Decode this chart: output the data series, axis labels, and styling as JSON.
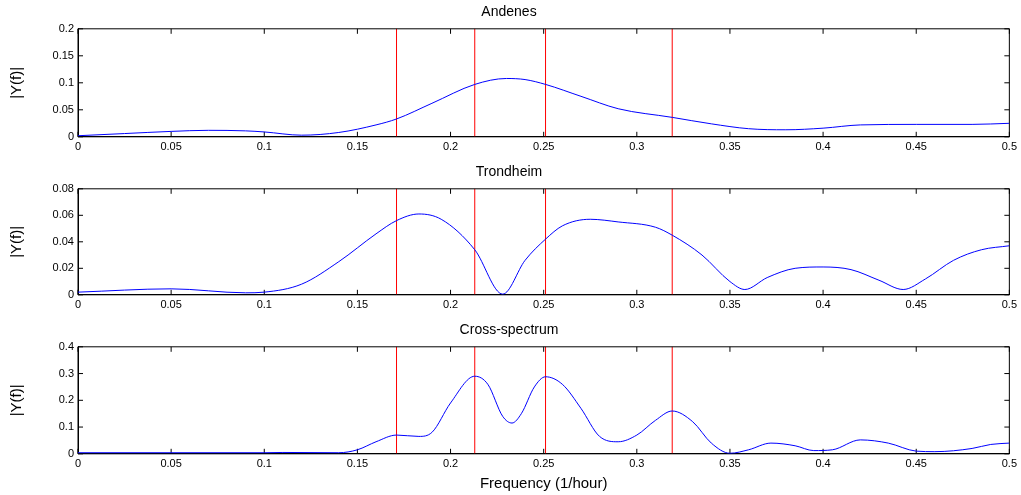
{
  "chart_data": [
    {
      "type": "line",
      "title": "Andenes",
      "ylabel": "|Y(f)|",
      "color": "#0000ff",
      "marker": "none",
      "xlim": [
        0,
        0.5
      ],
      "xticks": [
        0,
        0.05,
        0.1,
        0.15,
        0.2,
        0.25,
        0.3,
        0.35,
        0.4,
        0.45,
        0.5
      ],
      "ylim": [
        0,
        0.2
      ],
      "yticks": [
        0,
        0.05,
        0.1,
        0.15,
        0.2
      ],
      "x": [
        0,
        0.025,
        0.05,
        0.07,
        0.09,
        0.1,
        0.12,
        0.14,
        0.16,
        0.171,
        0.19,
        0.213,
        0.23,
        0.24,
        0.251,
        0.27,
        0.29,
        0.319,
        0.34,
        0.36,
        0.38,
        0.4,
        0.42,
        0.45,
        0.48,
        0.5
      ],
      "values": [
        0.002,
        0.006,
        0.01,
        0.012,
        0.011,
        0.009,
        0.003,
        0.008,
        0.022,
        0.033,
        0.062,
        0.097,
        0.108,
        0.106,
        0.097,
        0.075,
        0.052,
        0.036,
        0.024,
        0.015,
        0.013,
        0.016,
        0.022,
        0.023,
        0.023,
        0.025
      ],
      "ref_lines": [
        {
          "axis": "x",
          "value": 0.171,
          "color": "#ff0000"
        },
        {
          "axis": "x",
          "value": 0.213,
          "color": "#ff0000"
        },
        {
          "axis": "x",
          "value": 0.251,
          "color": "#ff0000"
        },
        {
          "axis": "x",
          "value": 0.319,
          "color": "#ff0000"
        }
      ]
    },
    {
      "type": "line",
      "title": "Trondheim",
      "ylabel": "|Y(f)|",
      "color": "#0000ff",
      "marker": "none",
      "xlim": [
        0,
        0.5
      ],
      "xticks": [
        0,
        0.05,
        0.1,
        0.15,
        0.2,
        0.25,
        0.3,
        0.35,
        0.4,
        0.45,
        0.5
      ],
      "ylim": [
        0,
        0.08
      ],
      "yticks": [
        0,
        0.02,
        0.04,
        0.06,
        0.08
      ],
      "x": [
        0,
        0.05,
        0.09,
        0.1,
        0.12,
        0.14,
        0.16,
        0.171,
        0.183,
        0.195,
        0.213,
        0.228,
        0.24,
        0.251,
        0.26,
        0.275,
        0.29,
        0.31,
        0.319,
        0.335,
        0.35,
        0.358,
        0.37,
        0.385,
        0.4,
        0.415,
        0.43,
        0.443,
        0.455,
        0.47,
        0.485,
        0.5
      ],
      "values": [
        0.002,
        0.0045,
        0.0015,
        0.002,
        0.008,
        0.025,
        0.046,
        0.056,
        0.061,
        0.057,
        0.034,
        0.0005,
        0.026,
        0.042,
        0.052,
        0.057,
        0.055,
        0.051,
        0.045,
        0.03,
        0.01,
        0.004,
        0.013,
        0.02,
        0.021,
        0.019,
        0.011,
        0.004,
        0.012,
        0.026,
        0.034,
        0.037
      ],
      "ref_lines": [
        {
          "axis": "x",
          "value": 0.171,
          "color": "#ff0000"
        },
        {
          "axis": "x",
          "value": 0.213,
          "color": "#ff0000"
        },
        {
          "axis": "x",
          "value": 0.251,
          "color": "#ff0000"
        },
        {
          "axis": "x",
          "value": 0.319,
          "color": "#ff0000"
        }
      ]
    },
    {
      "type": "line",
      "title": "Cross-spectrum",
      "ylabel": "|Y(f)|",
      "xlabel": "Frequency (1/hour)",
      "color": "#0000ff",
      "marker": "none",
      "xlim": [
        0,
        0.5
      ],
      "xticks": [
        0,
        0.05,
        0.1,
        0.15,
        0.2,
        0.25,
        0.3,
        0.35,
        0.4,
        0.45,
        0.5
      ],
      "ylim": [
        0,
        0.4
      ],
      "yticks": [
        0,
        0.1,
        0.2,
        0.3,
        0.4
      ],
      "x": [
        0,
        0.1,
        0.11,
        0.14,
        0.15,
        0.16,
        0.171,
        0.183,
        0.19,
        0.2,
        0.213,
        0.22,
        0.228,
        0.233,
        0.238,
        0.245,
        0.251,
        0.26,
        0.27,
        0.28,
        0.29,
        0.3,
        0.31,
        0.319,
        0.33,
        0.34,
        0.35,
        0.36,
        0.372,
        0.385,
        0.395,
        0.405,
        0.42,
        0.435,
        0.45,
        0.46,
        0.48,
        0.49,
        0.5
      ],
      "values": [
        0.004,
        0.004,
        0.005,
        0.004,
        0.015,
        0.045,
        0.07,
        0.065,
        0.08,
        0.19,
        0.29,
        0.26,
        0.14,
        0.115,
        0.15,
        0.25,
        0.288,
        0.26,
        0.17,
        0.065,
        0.045,
        0.07,
        0.125,
        0.16,
        0.12,
        0.04,
        0.002,
        0.015,
        0.04,
        0.03,
        0.012,
        0.015,
        0.052,
        0.04,
        0.01,
        0.008,
        0.02,
        0.035,
        0.04
      ],
      "ref_lines": [
        {
          "axis": "x",
          "value": 0.171,
          "color": "#ff0000"
        },
        {
          "axis": "x",
          "value": 0.213,
          "color": "#ff0000"
        },
        {
          "axis": "x",
          "value": 0.251,
          "color": "#ff0000"
        },
        {
          "axis": "x",
          "value": 0.319,
          "color": "#ff0000"
        }
      ]
    }
  ]
}
